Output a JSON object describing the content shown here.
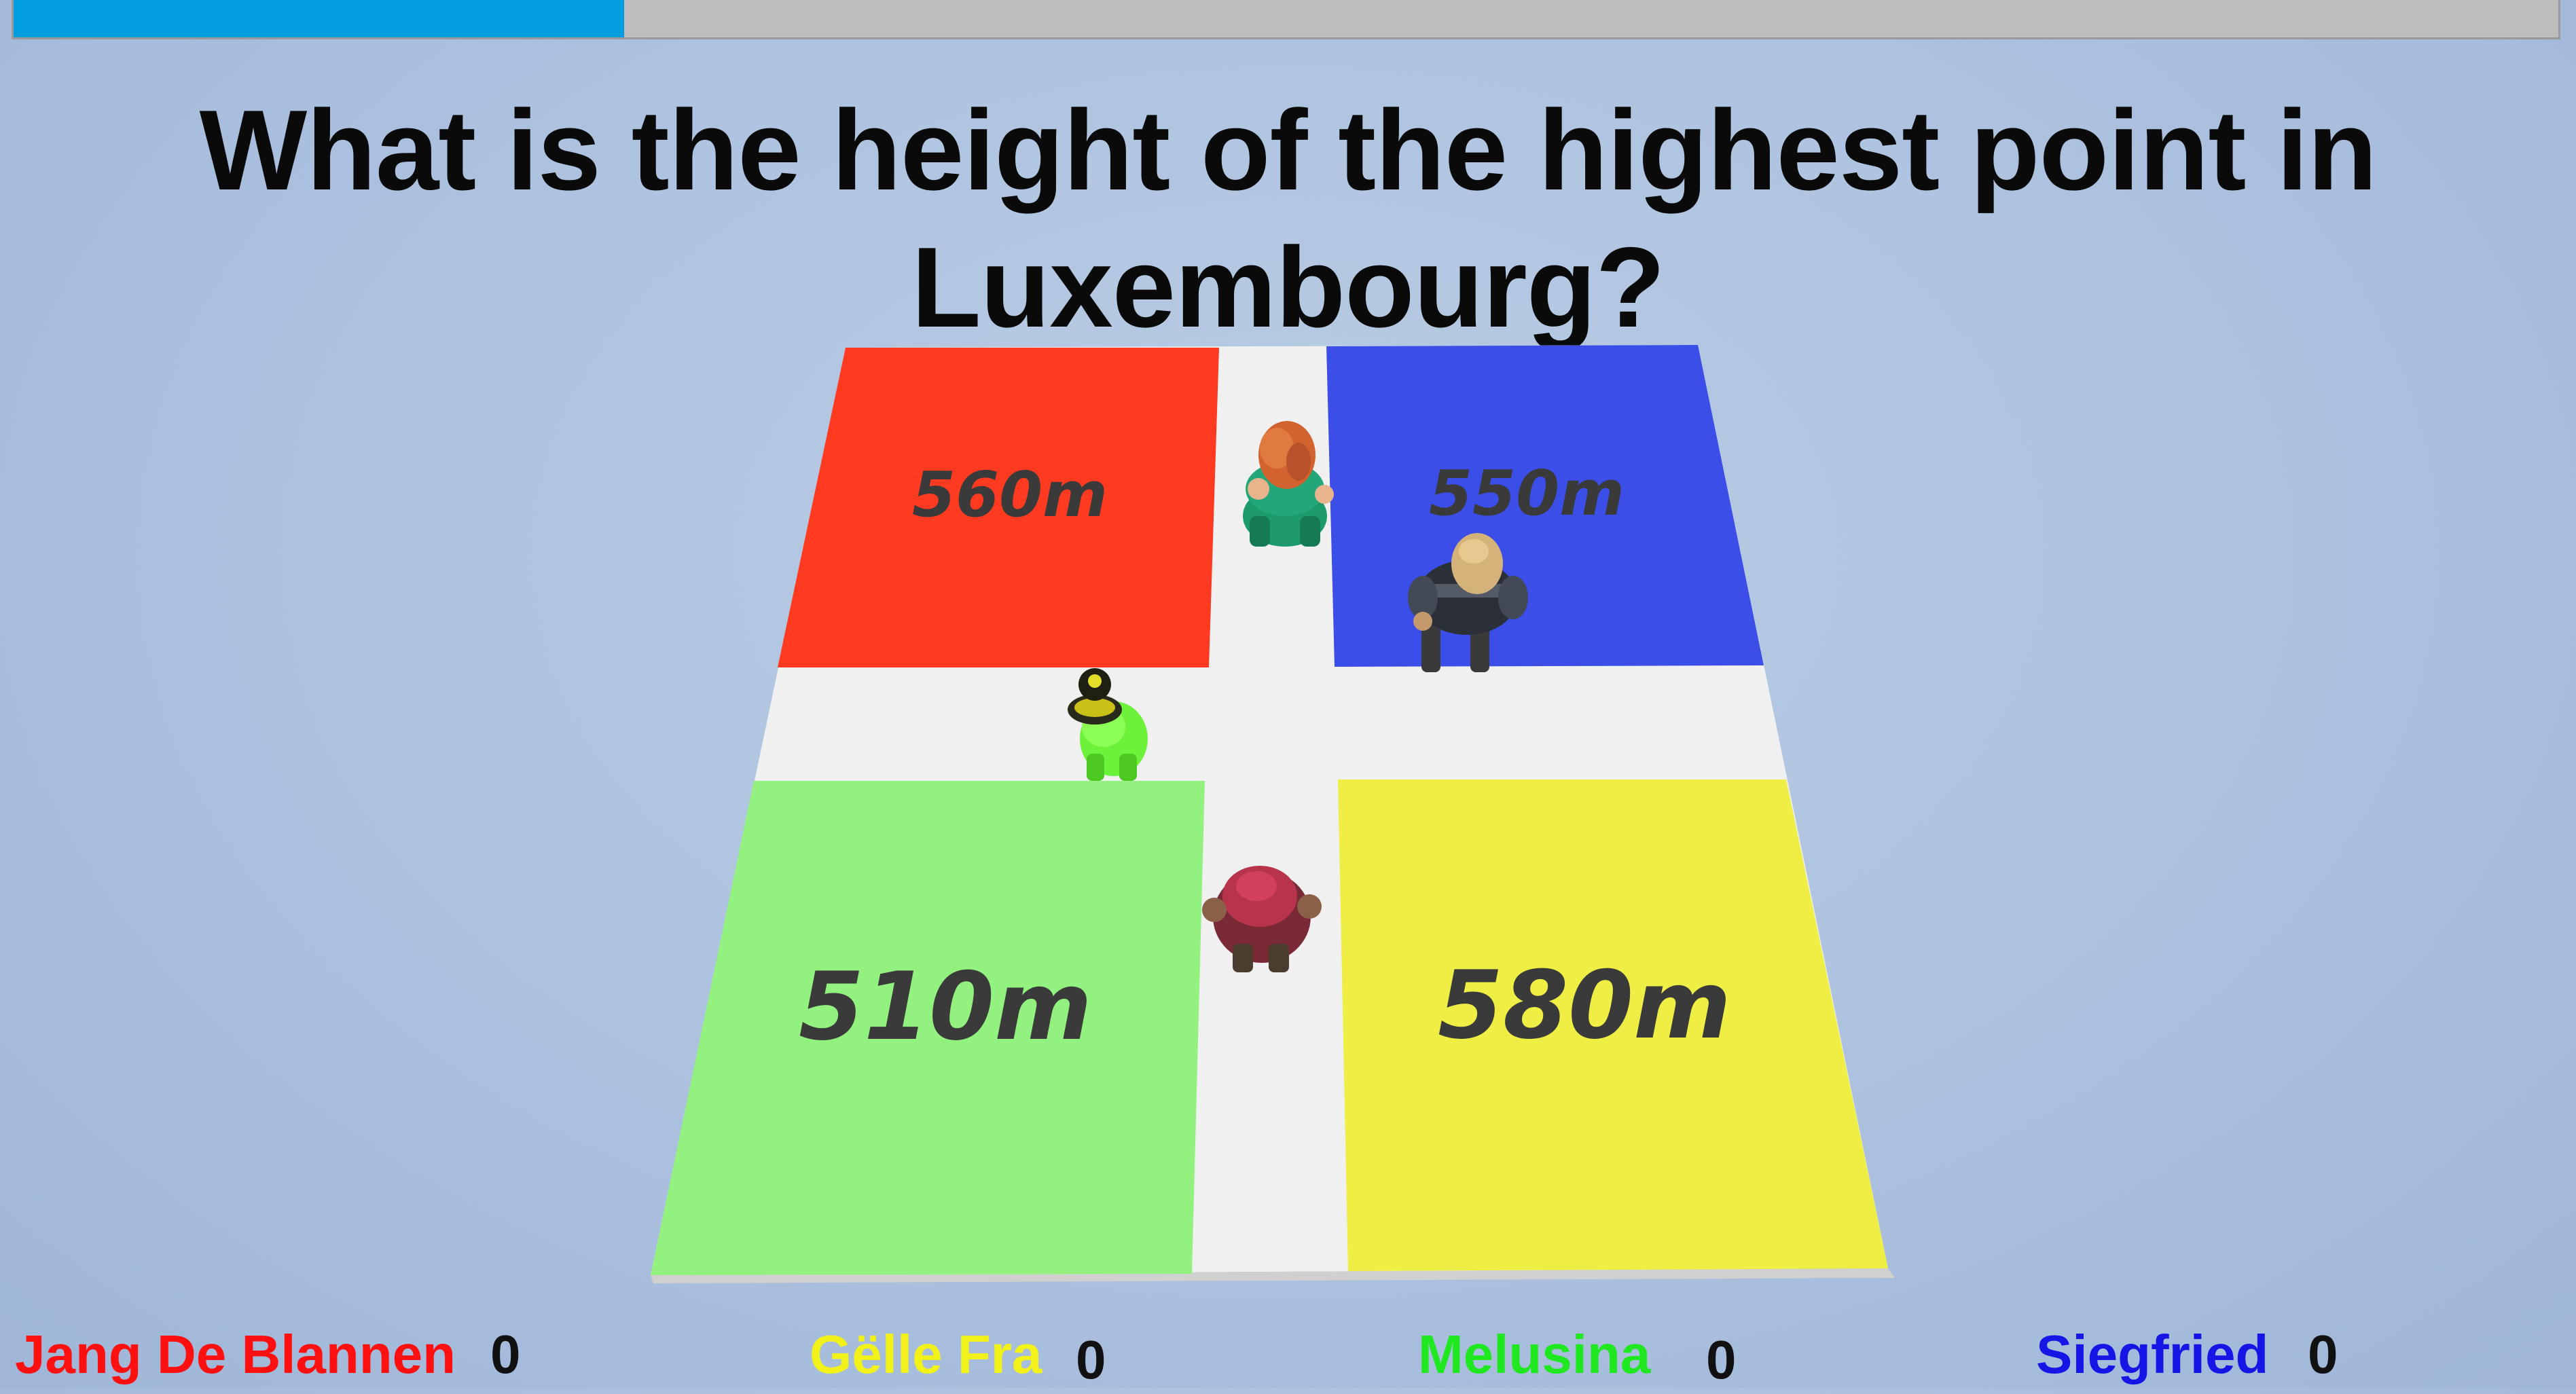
{
  "progress": {
    "fraction": 0.24
  },
  "question": "What is the height of the highest point in Luxembourg?",
  "answers": {
    "top_left": {
      "label": "560m",
      "color": "#fe3a21"
    },
    "top_right": {
      "label": "550m",
      "color": "#3b4fe8"
    },
    "bottom_left": {
      "label": "510m",
      "color": "#93f180"
    },
    "bottom_right": {
      "label": "580m",
      "color": "#eeee44"
    }
  },
  "players": [
    {
      "name": "Jang De Blannen",
      "score": "0",
      "color": "#ff1010"
    },
    {
      "name": "Gëlle Fra",
      "score": "0",
      "color": "#f2f21a"
    },
    {
      "name": "Melusina",
      "score": "0",
      "color": "#20e820"
    },
    {
      "name": "Siegfried",
      "score": "0",
      "color": "#1515e6"
    }
  ]
}
